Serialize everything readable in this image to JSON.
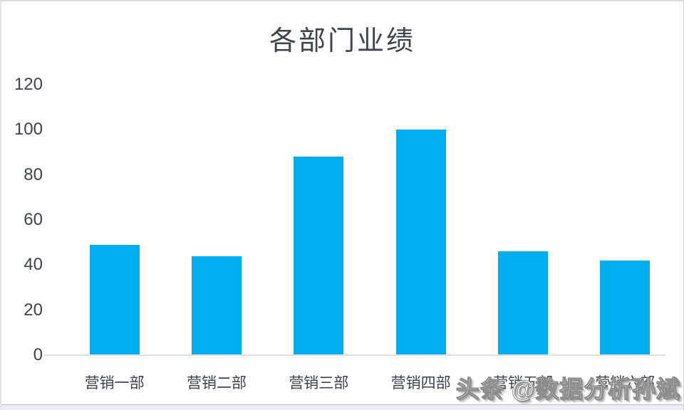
{
  "watermark": {
    "text": "头条 @数据分析孙斌"
  },
  "chart_data": {
    "type": "bar",
    "title": "各部门业绩",
    "categories": [
      "营销一部",
      "营销二部",
      "营销三部",
      "营销四部",
      "营销五部",
      "营销六部"
    ],
    "values": [
      49,
      44,
      88,
      100,
      46,
      42
    ],
    "xlabel": "",
    "ylabel": "",
    "ylim": [
      0,
      120
    ],
    "yticks": [
      0,
      20,
      40,
      60,
      80,
      100,
      120
    ],
    "grid": false,
    "legend": "none",
    "bar_color": "#00AEEF",
    "axis_line_color": "#E2E2E2",
    "text_color": "#3F434C"
  }
}
